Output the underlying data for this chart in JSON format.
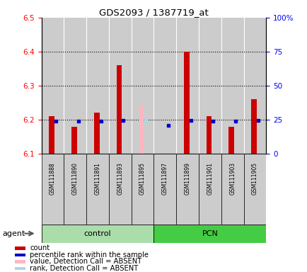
{
  "title": "GDS2093 / 1387719_at",
  "samples": [
    "GSM111888",
    "GSM111890",
    "GSM111891",
    "GSM111893",
    "GSM111895",
    "GSM111897",
    "GSM111899",
    "GSM111901",
    "GSM111903",
    "GSM111905"
  ],
  "groups": [
    "control",
    "control",
    "control",
    "control",
    "control",
    "PCN",
    "PCN",
    "PCN",
    "PCN",
    "PCN"
  ],
  "red_values": [
    6.21,
    6.18,
    6.22,
    6.36,
    null,
    6.1,
    6.4,
    6.21,
    6.18,
    6.26
  ],
  "blue_values": [
    6.196,
    6.196,
    6.195,
    6.198,
    null,
    null,
    6.197,
    6.196,
    6.196,
    6.197
  ],
  "pink_value": [
    null,
    null,
    null,
    null,
    6.24,
    null,
    null,
    null,
    null,
    null
  ],
  "lightblue_value": [
    null,
    null,
    null,
    null,
    6.196,
    null,
    null,
    null,
    null,
    null
  ],
  "absent_blue_value": [
    null,
    null,
    null,
    null,
    null,
    6.183,
    null,
    null,
    null,
    null
  ],
  "ylim": [
    6.1,
    6.5
  ],
  "y2lim": [
    0,
    100
  ],
  "yticks": [
    6.1,
    6.2,
    6.3,
    6.4,
    6.5
  ],
  "y2ticks": [
    0,
    25,
    50,
    75,
    100
  ],
  "y2ticklabels": [
    "0",
    "25",
    "50",
    "75",
    "100%"
  ],
  "dotted_lines": [
    6.2,
    6.3,
    6.4
  ],
  "bar_base": 6.1,
  "red_color": "#cc0000",
  "blue_color": "#0000cc",
  "pink_color": "#ffb6c1",
  "lightblue_color": "#add8e6",
  "sample_bg": "#cccccc",
  "control_bg": "#aaddaa",
  "pcn_bg": "#44cc44",
  "control_label": "control",
  "pcn_label": "PCN",
  "agent_label": "agent",
  "legend_items": [
    {
      "color": "#cc0000",
      "label": "count"
    },
    {
      "color": "#0000cc",
      "label": "percentile rank within the sample"
    },
    {
      "color": "#ffb6c1",
      "label": "value, Detection Call = ABSENT"
    },
    {
      "color": "#add8e6",
      "label": "rank, Detection Call = ABSENT"
    }
  ]
}
